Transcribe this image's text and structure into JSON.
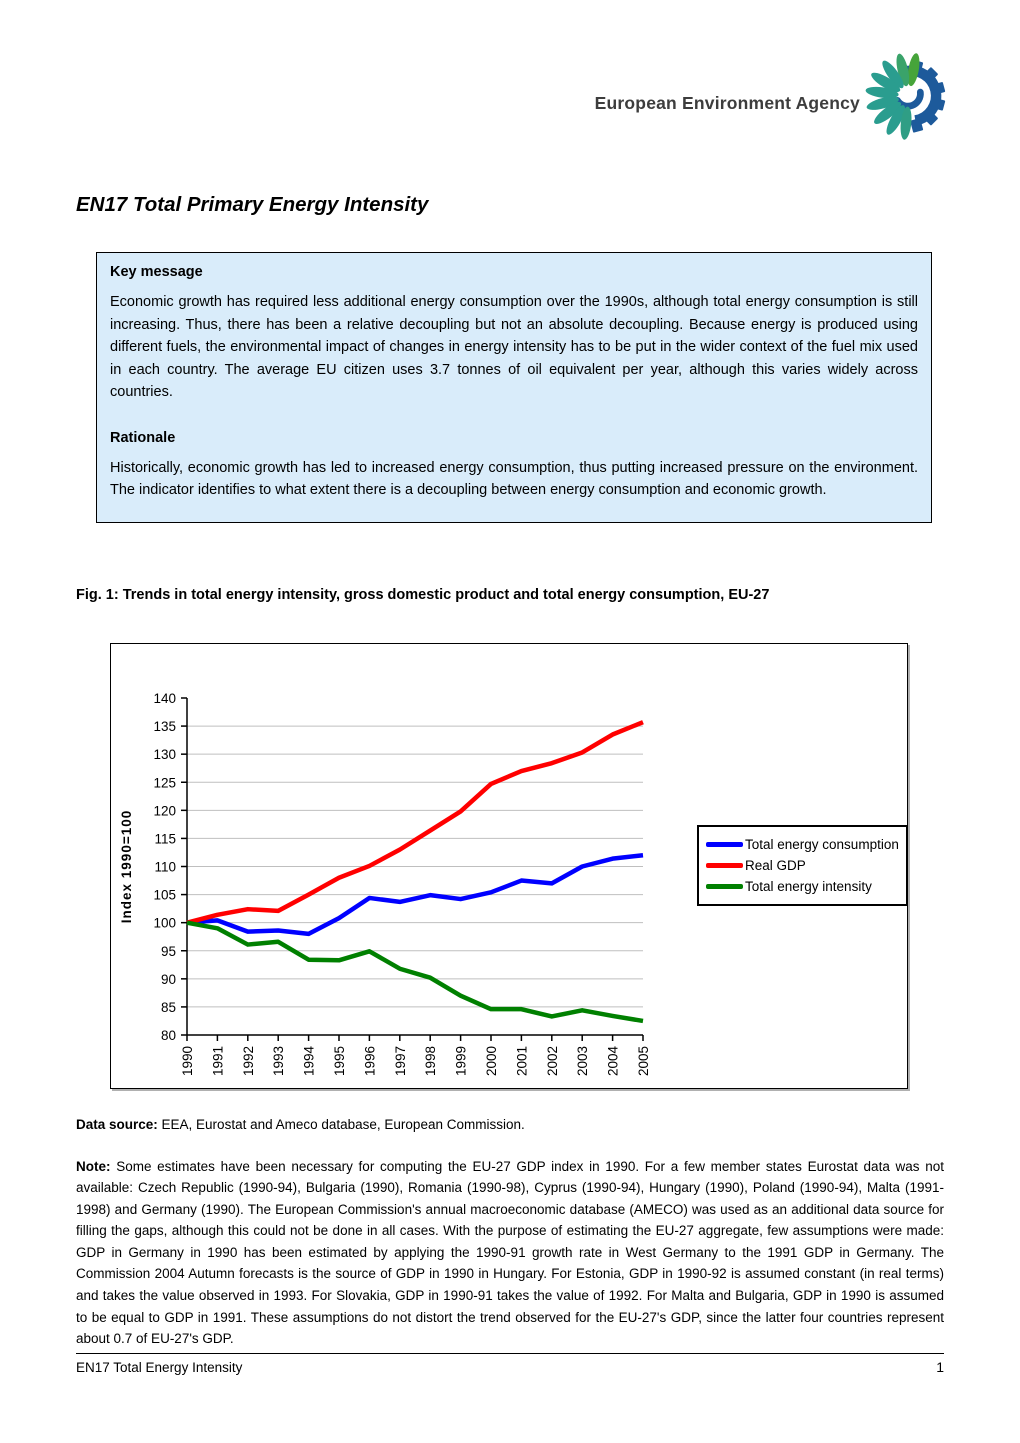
{
  "header": {
    "agency_name": "European Environment Agency"
  },
  "page_title": "EN17 Total Primary Energy Intensity",
  "info_box": {
    "key_message_heading": "Key message",
    "key_message_text": "Economic growth has required less additional energy consumption over the 1990s, although total energy consumption is still increasing. Thus, there has been a relative decoupling but not an absolute decoupling. Because energy is produced using different fuels, the environmental impact of changes in energy intensity has to be put in the wider context of the fuel mix used in each country. The average EU citizen uses 3.7 tonnes of oil equivalent per year, although this varies widely across countries.",
    "rationale_heading": "Rationale",
    "rationale_text": "Historically, economic growth has led to increased energy consumption, thus putting increased pressure on the environment. The indicator identifies to what extent there is a decoupling between energy consumption and economic growth."
  },
  "figure_caption": "Fig. 1: Trends in total energy intensity, gross domestic product and total energy consumption, EU-27",
  "chart_data": {
    "type": "line",
    "title": "",
    "xlabel": "",
    "ylabel": "Index 1990=100",
    "ylim": [
      80,
      140
    ],
    "ytick_step": 5,
    "grid": true,
    "legend_position": "right",
    "x": [
      1990,
      1991,
      1992,
      1993,
      1994,
      1995,
      1996,
      1997,
      1998,
      1999,
      2000,
      2001,
      2002,
      2003,
      2004,
      2005
    ],
    "series": [
      {
        "name": "Total energy consumption",
        "color": "#0000ff",
        "values": [
          100,
          100.4,
          98.4,
          98.6,
          98.0,
          100.8,
          104.4,
          103.7,
          104.9,
          104.2,
          105.4,
          107.5,
          107.0,
          110.0,
          111.4,
          112.0
        ]
      },
      {
        "name": "Real GDP",
        "color": "#ff0000",
        "values": [
          100,
          101.4,
          102.4,
          102.1,
          105.0,
          108.0,
          110.1,
          113.0,
          116.4,
          119.8,
          124.7,
          127.0,
          128.4,
          130.3,
          133.5,
          135.7
        ]
      },
      {
        "name": "Total energy intensity",
        "color": "#008000",
        "values": [
          100,
          99.0,
          96.1,
          96.6,
          93.4,
          93.3,
          94.9,
          91.8,
          90.2,
          87.0,
          84.6,
          84.6,
          83.3,
          84.4,
          83.4,
          82.5
        ]
      }
    ]
  },
  "data_source": {
    "label": "Data source:",
    "text": " EEA, Eurostat and Ameco database, European Commission."
  },
  "note": {
    "label": "Note:",
    "text": " Some estimates have been necessary for computing the EU-27 GDP index in 1990. For a few member states Eurostat data was not available: Czech Republic (1990-94), Bulgaria (1990), Romania (1990-98), Cyprus (1990-94), Hungary (1990), Poland (1990-94), Malta (1991-1998) and Germany (1990). The European Commission's annual macroeconomic database (AMECO) was used as an additional data source for filling the gaps, although this could not be done in all cases. With the purpose of estimating the EU-27 aggregate, few assumptions were made: GDP in Germany in 1990 has been estimated by applying the 1990-91 growth rate in West Germany to the 1991 GDP in Germany. The Commission 2004 Autumn forecasts is the source of GDP in 1990 in Hungary. For Estonia, GDP in 1990-92 is assumed constant (in real terms) and takes the value observed in 1993. For Slovakia, GDP in 1990-91 takes the value of 1992. For Malta and Bulgaria, GDP in 1990 is assumed to be equal to GDP in 1991. These assumptions do not distort the trend observed for the EU-27's GDP, since the latter four countries represent about 0.7 of EU-27's GDP."
  },
  "footer": {
    "left": "EN17 Total Energy Intensity",
    "page_number": "1"
  }
}
